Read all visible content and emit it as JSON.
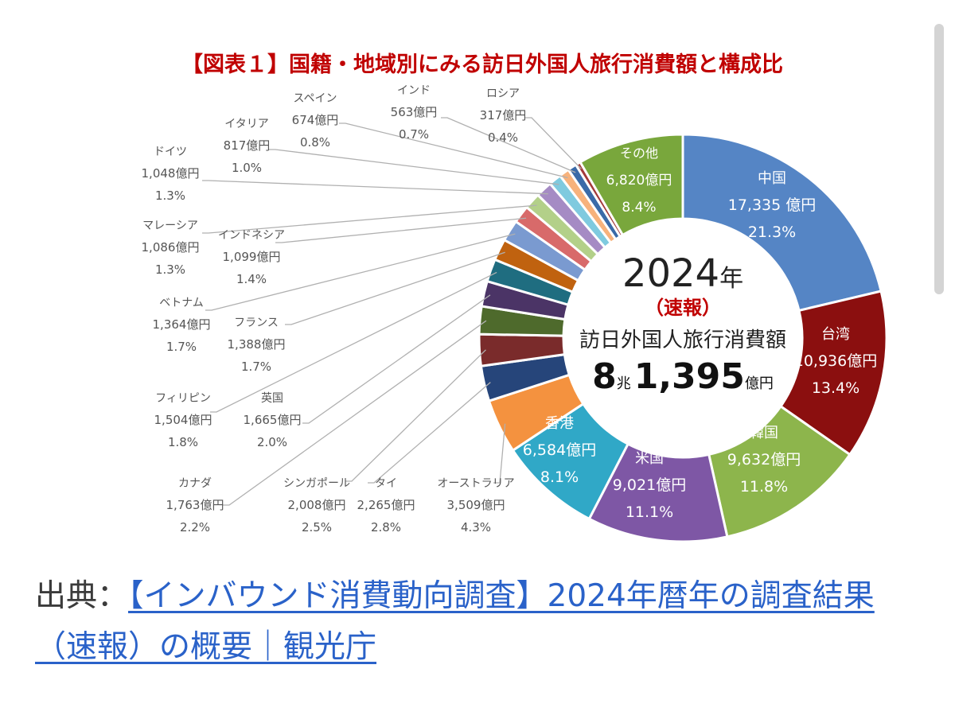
{
  "chart_data": {
    "type": "pie",
    "title": "【図表１】国籍・地域別にみる訪日外国人旅行消費額と構成比",
    "center": {
      "year": "2024",
      "year_suffix": "年",
      "note": "（速報）",
      "label": "訪日外国人旅行消費額",
      "value_cho": "8",
      "unit_cho": "兆",
      "value_oku": "1,395",
      "unit_oku": "億円"
    },
    "slices": [
      {
        "name": "中国",
        "amount": "17,335 億円",
        "pct_label": "21.3%",
        "value": 21.3,
        "color": "#5585c5"
      },
      {
        "name": "台湾",
        "amount": "10,936億円",
        "pct_label": "13.4%",
        "value": 13.4,
        "color": "#8b0f0f"
      },
      {
        "name": "韓国",
        "amount": "9,632億円",
        "pct_label": "11.8%",
        "value": 11.8,
        "color": "#8db54c"
      },
      {
        "name": "米国",
        "amount": "9,021億円",
        "pct_label": "11.1%",
        "value": 11.1,
        "color": "#7e57a5"
      },
      {
        "name": "香港",
        "amount": "6,584億円",
        "pct_label": "8.1%",
        "value": 8.1,
        "color": "#30a8c7"
      },
      {
        "name": "オーストラリア",
        "amount": "3,509億円",
        "pct_label": "4.3%",
        "value": 4.3,
        "color": "#f4923f"
      },
      {
        "name": "タイ",
        "amount": "2,265億円",
        "pct_label": "2.8%",
        "value": 2.8,
        "color": "#26457a"
      },
      {
        "name": "シンガポール",
        "amount": "2,008億円",
        "pct_label": "2.5%",
        "value": 2.5,
        "color": "#7a2b2b"
      },
      {
        "name": "カナダ",
        "amount": "1,763億円",
        "pct_label": "2.2%",
        "value": 2.2,
        "color": "#4e6a2c"
      },
      {
        "name": "英国",
        "amount": "1,665億円",
        "pct_label": "2.0%",
        "value": 2.0,
        "color": "#4b3466"
      },
      {
        "name": "フィリピン",
        "amount": "1,504億円",
        "pct_label": "1.8%",
        "value": 1.8,
        "color": "#1f6d80"
      },
      {
        "name": "フランス",
        "amount": "1,388億円",
        "pct_label": "1.7%",
        "value": 1.7,
        "color": "#c0620f"
      },
      {
        "name": "ベトナム",
        "amount": "1,364億円",
        "pct_label": "1.7%",
        "value": 1.7,
        "color": "#7a9ad0"
      },
      {
        "name": "インドネシア",
        "amount": "1,099億円",
        "pct_label": "1.4%",
        "value": 1.4,
        "color": "#d86a6a"
      },
      {
        "name": "マレーシア",
        "amount": "1,086億円",
        "pct_label": "1.3%",
        "value": 1.3,
        "color": "#b3d089"
      },
      {
        "name": "ドイツ",
        "amount": "1,048億円",
        "pct_label": "1.3%",
        "value": 1.3,
        "color": "#a58bc4"
      },
      {
        "name": "イタリア",
        "amount": "817億円",
        "pct_label": "1.0%",
        "value": 1.0,
        "color": "#7fcadf"
      },
      {
        "name": "スペイン",
        "amount": "674億円",
        "pct_label": "0.8%",
        "value": 0.8,
        "color": "#f7b27c"
      },
      {
        "name": "インド",
        "amount": "563億円",
        "pct_label": "0.7%",
        "value": 0.7,
        "color": "#3a6aa8"
      },
      {
        "name": "ロシア",
        "amount": "317億円",
        "pct_label": "0.4%",
        "value": 0.4,
        "color": "#a33a3a"
      },
      {
        "name": "その他",
        "amount": "6,820億円",
        "pct_label": "8.4%",
        "value": 8.4,
        "color": "#79a73c"
      }
    ]
  },
  "caption": {
    "prefix": "出典：",
    "link_text": "【インバウンド消費動向調査】2024年暦年の調査結果（速報）の概要｜観光庁"
  }
}
